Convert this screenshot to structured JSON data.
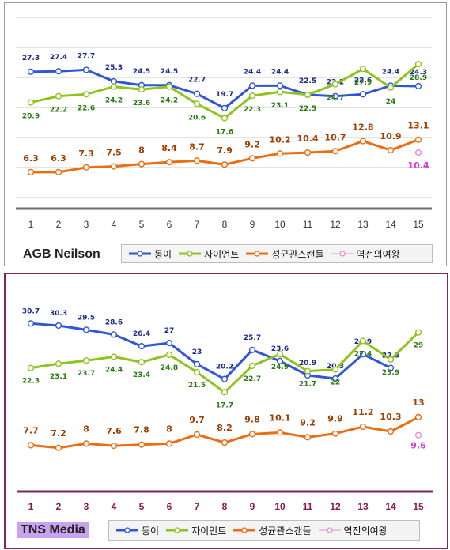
{
  "colors": {
    "series": [
      "#2f56d8",
      "#8fc31f",
      "#ec6d11",
      "#ea8ad6"
    ],
    "label_colors": [
      "#1a2a8a",
      "#2b7a12",
      "#a03e00",
      "#d63ad0"
    ],
    "tns_border": "#7a2a5a",
    "tns_title_bg": "#c9a3f0"
  },
  "chart_data": [
    {
      "type": "line",
      "title": "AGB Neilson",
      "categories": [
        "1",
        "2",
        "3",
        "4",
        "5",
        "6",
        "7",
        "8",
        "9",
        "10",
        "11",
        "12",
        "13",
        "14",
        "15"
      ],
      "series": [
        {
          "name": "동이",
          "values": [
            27.3,
            27.4,
            27.7,
            25.3,
            24.5,
            24.5,
            22.7,
            19.7,
            24.4,
            24.4,
            22.5,
            22.2,
            22.6,
            24.4,
            24.3
          ]
        },
        {
          "name": "자이언트",
          "values": [
            20.9,
            22.2,
            22.6,
            24.2,
            23.6,
            24.2,
            20.6,
            17.6,
            22.3,
            23.1,
            22.5,
            24.7,
            27.9,
            24,
            28.9
          ]
        },
        {
          "name": "성균관스캔들",
          "values": [
            6.3,
            6.3,
            7.3,
            7.5,
            8,
            8.4,
            8.7,
            7.9,
            9.2,
            10.2,
            10.4,
            10.7,
            12.8,
            10.9,
            13.1
          ]
        },
        {
          "name": "역전의여왕",
          "values": [
            null,
            null,
            null,
            null,
            null,
            null,
            null,
            null,
            null,
            null,
            null,
            null,
            null,
            null,
            10.4
          ]
        }
      ],
      "grid": true,
      "legend": "bottom"
    },
    {
      "type": "line",
      "title": "TNS Media",
      "categories": [
        "1",
        "2",
        "3",
        "4",
        "5",
        "6",
        "7",
        "8",
        "9",
        "10",
        "11",
        "12",
        "13",
        "14",
        "15"
      ],
      "series": [
        {
          "name": "동이",
          "values": [
            30.7,
            30.3,
            29.5,
            28.6,
            26.4,
            27,
            23,
            20.2,
            25.7,
            23.6,
            20.9,
            20.3,
            24.9,
            22.3,
            null
          ]
        },
        {
          "name": "자이언트",
          "values": [
            22.3,
            23.1,
            23.7,
            24.4,
            23.4,
            24.8,
            21.5,
            17.7,
            22.7,
            24.9,
            21.7,
            22,
            27.4,
            23.9,
            29
          ]
        },
        {
          "name": "성균관스캔들",
          "values": [
            7.7,
            7.2,
            8,
            7.6,
            7.8,
            8,
            9.7,
            8.2,
            9.8,
            10.1,
            9.2,
            9.9,
            11.2,
            10.3,
            13
          ]
        },
        {
          "name": "역전의여왕",
          "values": [
            null,
            null,
            null,
            null,
            null,
            null,
            null,
            null,
            null,
            null,
            null,
            null,
            null,
            null,
            9.6
          ]
        }
      ],
      "grid": false,
      "legend": "bottom"
    }
  ]
}
